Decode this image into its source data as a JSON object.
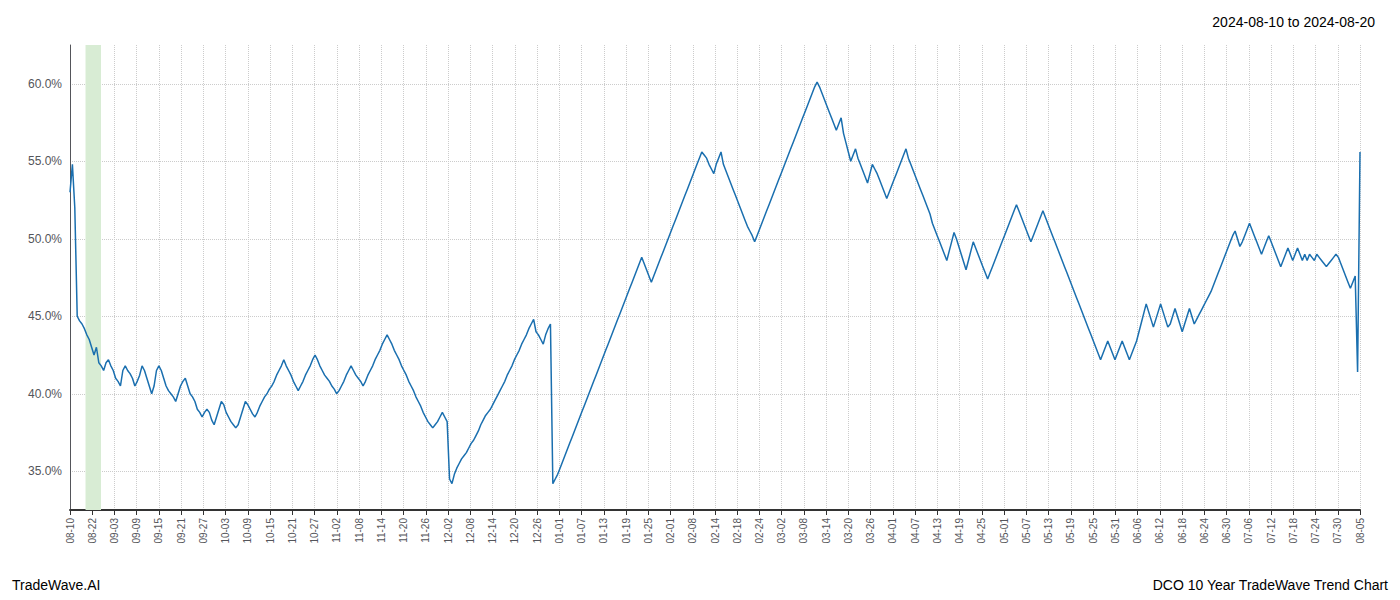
{
  "chart_data": {
    "type": "line",
    "title": "2024-08-10 to 2024-08-20",
    "annotations": [
      "TradeWave.AI",
      "DCO 10 Year TradeWave Trend Chart"
    ],
    "color": "#1a6faf",
    "grid": true,
    "ylim": [
      0.325,
      0.625
    ],
    "yticks": [
      {
        "value": 0.35,
        "label": "35.0%"
      },
      {
        "value": 0.4,
        "label": "40.0%"
      },
      {
        "value": 0.45,
        "label": "45.0%"
      },
      {
        "value": 0.5,
        "label": "50.0%"
      },
      {
        "value": 0.55,
        "label": "55.0%"
      },
      {
        "value": 0.6,
        "label": "60.0%"
      }
    ],
    "xlim": [
      0,
      537
    ],
    "xticks": [
      {
        "value": 0,
        "label": "08-10"
      },
      {
        "value": 9.2586,
        "label": "08-22"
      },
      {
        "value": 18.5172,
        "label": "09-03"
      },
      {
        "value": 27.7759,
        "label": "09-09"
      },
      {
        "value": 37.0345,
        "label": "09-15"
      },
      {
        "value": 46.2931,
        "label": "09-21"
      },
      {
        "value": 55.5517,
        "label": "09-27"
      },
      {
        "value": 64.8103,
        "label": "10-03"
      },
      {
        "value": 74.069,
        "label": "10-09"
      },
      {
        "value": 83.3276,
        "label": "10-15"
      },
      {
        "value": 92.5862,
        "label": "10-21"
      },
      {
        "value": 101.8448,
        "label": "10-27"
      },
      {
        "value": 111.1034,
        "label": "11-02"
      },
      {
        "value": 120.3621,
        "label": "11-08"
      },
      {
        "value": 129.6207,
        "label": "11-14"
      },
      {
        "value": 138.8793,
        "label": "11-20"
      },
      {
        "value": 148.1379,
        "label": "11-26"
      },
      {
        "value": 157.3966,
        "label": "12-02"
      },
      {
        "value": 166.6552,
        "label": "12-08"
      },
      {
        "value": 175.9138,
        "label": "12-14"
      },
      {
        "value": 185.1724,
        "label": "12-20"
      },
      {
        "value": 194.431,
        "label": "12-26"
      },
      {
        "value": 203.6897,
        "label": "01-01"
      },
      {
        "value": 212.9483,
        "label": "01-07"
      },
      {
        "value": 222.2069,
        "label": "01-13"
      },
      {
        "value": 231.4655,
        "label": "01-19"
      },
      {
        "value": 240.7241,
        "label": "01-25"
      },
      {
        "value": 249.9828,
        "label": "02-01"
      },
      {
        "value": 259.2414,
        "label": "02-08"
      },
      {
        "value": 268.5,
        "label": "02-14"
      },
      {
        "value": 277.7586,
        "label": "02-18"
      },
      {
        "value": 287.0172,
        "label": "02-24"
      },
      {
        "value": 296.2759,
        "label": "03-02"
      },
      {
        "value": 305.5345,
        "label": "03-08"
      },
      {
        "value": 314.7931,
        "label": "03-14"
      },
      {
        "value": 324.0517,
        "label": "03-20"
      },
      {
        "value": 333.3103,
        "label": "03-26"
      },
      {
        "value": 342.569,
        "label": "04-01"
      },
      {
        "value": 351.8276,
        "label": "04-07"
      },
      {
        "value": 361.0862,
        "label": "04-13"
      },
      {
        "value": 370.3448,
        "label": "04-19"
      },
      {
        "value": 379.6034,
        "label": "04-25"
      },
      {
        "value": 388.8621,
        "label": "05-01"
      },
      {
        "value": 398.1207,
        "label": "05-07"
      },
      {
        "value": 407.3793,
        "label": "05-13"
      },
      {
        "value": 416.6379,
        "label": "05-19"
      },
      {
        "value": 425.8966,
        "label": "05-25"
      },
      {
        "value": 435.1552,
        "label": "05-31"
      },
      {
        "value": 444.4138,
        "label": "06-06"
      },
      {
        "value": 453.6724,
        "label": "06-12"
      },
      {
        "value": 462.931,
        "label": "06-18"
      },
      {
        "value": 472.1897,
        "label": "06-24"
      },
      {
        "value": 481.4483,
        "label": "06-30"
      },
      {
        "value": 490.7069,
        "label": "07-06"
      },
      {
        "value": 499.9655,
        "label": "07-12"
      },
      {
        "value": 509.2241,
        "label": "07-18"
      },
      {
        "value": 518.4828,
        "label": "07-24"
      },
      {
        "value": 527.7414,
        "label": "07-30"
      },
      {
        "value": 537,
        "label": "08-05"
      }
    ],
    "highlight": {
      "x": [
        6.456,
        12.912
      ],
      "color": "#d8ecd4"
    },
    "values": [
      0.53,
      0.548,
      0.52,
      0.45,
      0.447,
      0.445,
      0.442,
      0.438,
      0.435,
      0.43,
      0.425,
      0.43,
      0.42,
      0.418,
      0.415,
      0.42,
      0.422,
      0.418,
      0.415,
      0.41,
      0.408,
      0.405,
      0.415,
      0.418,
      0.415,
      0.413,
      0.41,
      0.405,
      0.408,
      0.412,
      0.418,
      0.415,
      0.41,
      0.405,
      0.4,
      0.405,
      0.415,
      0.418,
      0.415,
      0.41,
      0.405,
      0.402,
      0.4,
      0.398,
      0.395,
      0.4,
      0.405,
      0.408,
      0.41,
      0.405,
      0.4,
      0.398,
      0.395,
      0.39,
      0.388,
      0.385,
      0.388,
      0.39,
      0.388,
      0.383,
      0.38,
      0.385,
      0.39,
      0.395,
      0.393,
      0.388,
      0.385,
      0.382,
      0.38,
      0.378,
      0.38,
      0.385,
      0.39,
      0.395,
      0.393,
      0.39,
      0.387,
      0.385,
      0.388,
      0.392,
      0.395,
      0.398,
      0.4,
      0.403,
      0.405,
      0.408,
      0.412,
      0.415,
      0.418,
      0.422,
      0.418,
      0.415,
      0.412,
      0.408,
      0.405,
      0.402,
      0.405,
      0.408,
      0.412,
      0.415,
      0.418,
      0.422,
      0.425,
      0.422,
      0.418,
      0.415,
      0.412,
      0.41,
      0.408,
      0.405,
      0.403,
      0.4,
      0.402,
      0.405,
      0.408,
      0.412,
      0.415,
      0.418,
      0.415,
      0.412,
      0.41,
      0.408,
      0.405,
      0.408,
      0.412,
      0.415,
      0.418,
      0.422,
      0.425,
      0.428,
      0.432,
      0.435,
      0.438,
      0.435,
      0.432,
      0.428,
      0.425,
      0.422,
      0.418,
      0.415,
      0.412,
      0.408,
      0.405,
      0.402,
      0.398,
      0.395,
      0.392,
      0.388,
      0.385,
      0.382,
      0.38,
      0.378,
      0.38,
      0.382,
      0.385,
      0.388,
      0.385,
      0.382,
      0.345,
      0.342,
      0.348,
      0.352,
      0.355,
      0.358,
      0.36,
      0.362,
      0.365,
      0.368,
      0.37,
      0.373,
      0.376,
      0.38,
      0.383,
      0.386,
      0.388,
      0.39,
      0.393,
      0.396,
      0.399,
      0.402,
      0.405,
      0.408,
      0.412,
      0.415,
      0.418,
      0.422,
      0.425,
      0.428,
      0.432,
      0.435,
      0.438,
      0.442,
      0.445,
      0.448,
      0.44,
      0.438,
      0.435,
      0.432,
      0.438,
      0.442,
      0.445,
      0.342,
      0.345,
      0.348,
      0.352,
      0.356,
      0.36,
      0.364,
      0.368,
      0.372,
      0.376,
      0.38,
      0.384,
      0.388,
      0.392,
      0.396,
      0.4,
      0.404,
      0.408,
      0.412,
      0.416,
      0.42,
      0.424,
      0.428,
      0.432,
      0.436,
      0.44,
      0.444,
      0.448,
      0.452,
      0.456,
      0.46,
      0.464,
      0.468,
      0.472,
      0.476,
      0.48,
      0.484,
      0.488,
      0.484,
      0.48,
      0.476,
      0.472,
      0.476,
      0.48,
      0.484,
      0.488,
      0.492,
      0.496,
      0.5,
      0.504,
      0.508,
      0.512,
      0.516,
      0.52,
      0.524,
      0.528,
      0.532,
      0.536,
      0.54,
      0.544,
      0.548,
      0.552,
      0.556,
      0.554,
      0.552,
      0.548,
      0.545,
      0.542,
      0.548,
      0.552,
      0.556,
      0.548,
      0.544,
      0.54,
      0.536,
      0.532,
      0.528,
      0.524,
      0.52,
      0.516,
      0.512,
      0.508,
      0.505,
      0.502,
      0.498,
      0.502,
      0.506,
      0.51,
      0.514,
      0.518,
      0.522,
      0.526,
      0.53,
      0.534,
      0.538,
      0.542,
      0.546,
      0.55,
      0.554,
      0.558,
      0.562,
      0.566,
      0.57,
      0.574,
      0.578,
      0.582,
      0.586,
      0.59,
      0.594,
      0.598,
      0.601,
      0.598,
      0.594,
      0.59,
      0.586,
      0.582,
      0.578,
      0.574,
      0.57,
      0.574,
      0.578,
      0.568,
      0.562,
      0.556,
      0.55,
      0.554,
      0.558,
      0.552,
      0.548,
      0.544,
      0.54,
      0.536,
      0.542,
      0.548,
      0.545,
      0.542,
      0.538,
      0.534,
      0.53,
      0.526,
      0.53,
      0.534,
      0.538,
      0.542,
      0.546,
      0.55,
      0.554,
      0.558,
      0.552,
      0.548,
      0.544,
      0.54,
      0.536,
      0.532,
      0.528,
      0.524,
      0.52,
      0.516,
      0.51,
      0.506,
      0.502,
      0.498,
      0.494,
      0.49,
      0.486,
      0.492,
      0.498,
      0.504,
      0.5,
      0.495,
      0.49,
      0.485,
      0.48,
      0.486,
      0.492,
      0.498,
      0.494,
      0.49,
      0.486,
      0.482,
      0.478,
      0.474,
      0.478,
      0.482,
      0.486,
      0.49,
      0.494,
      0.498,
      0.502,
      0.506,
      0.51,
      0.514,
      0.518,
      0.522,
      0.518,
      0.514,
      0.51,
      0.506,
      0.502,
      0.498,
      0.502,
      0.506,
      0.51,
      0.514,
      0.518,
      0.514,
      0.51,
      0.506,
      0.502,
      0.498,
      0.494,
      0.49,
      0.486,
      0.482,
      0.478,
      0.474,
      0.47,
      0.466,
      0.462,
      0.458,
      0.454,
      0.45,
      0.446,
      0.442,
      0.438,
      0.434,
      0.43,
      0.426,
      0.422,
      0.426,
      0.43,
      0.434,
      0.43,
      0.426,
      0.422,
      0.426,
      0.43,
      0.434,
      0.43,
      0.426,
      0.422,
      0.426,
      0.43,
      0.434,
      0.44,
      0.446,
      0.452,
      0.458,
      0.453,
      0.448,
      0.443,
      0.448,
      0.453,
      0.458,
      0.453,
      0.448,
      0.443,
      0.445,
      0.45,
      0.455,
      0.45,
      0.445,
      0.44,
      0.445,
      0.45,
      0.455,
      0.45,
      0.445,
      0.448,
      0.451,
      0.454,
      0.457,
      0.46,
      0.463,
      0.466,
      0.47,
      0.474,
      0.478,
      0.482,
      0.486,
      0.49,
      0.494,
      0.498,
      0.502,
      0.505,
      0.5,
      0.495,
      0.498,
      0.502,
      0.506,
      0.51,
      0.506,
      0.502,
      0.498,
      0.494,
      0.49,
      0.494,
      0.498,
      0.502,
      0.498,
      0.494,
      0.49,
      0.486,
      0.482,
      0.486,
      0.49,
      0.494,
      0.49,
      0.486,
      0.49,
      0.494,
      0.49,
      0.486,
      0.49,
      0.486,
      0.49,
      0.488,
      0.486,
      0.49,
      0.488,
      0.486,
      0.484,
      0.482,
      0.484,
      0.486,
      0.488,
      0.49,
      0.488,
      0.484,
      0.48,
      0.476,
      0.472,
      0.468,
      0.472,
      0.476,
      0.414,
      0.556
    ]
  }
}
